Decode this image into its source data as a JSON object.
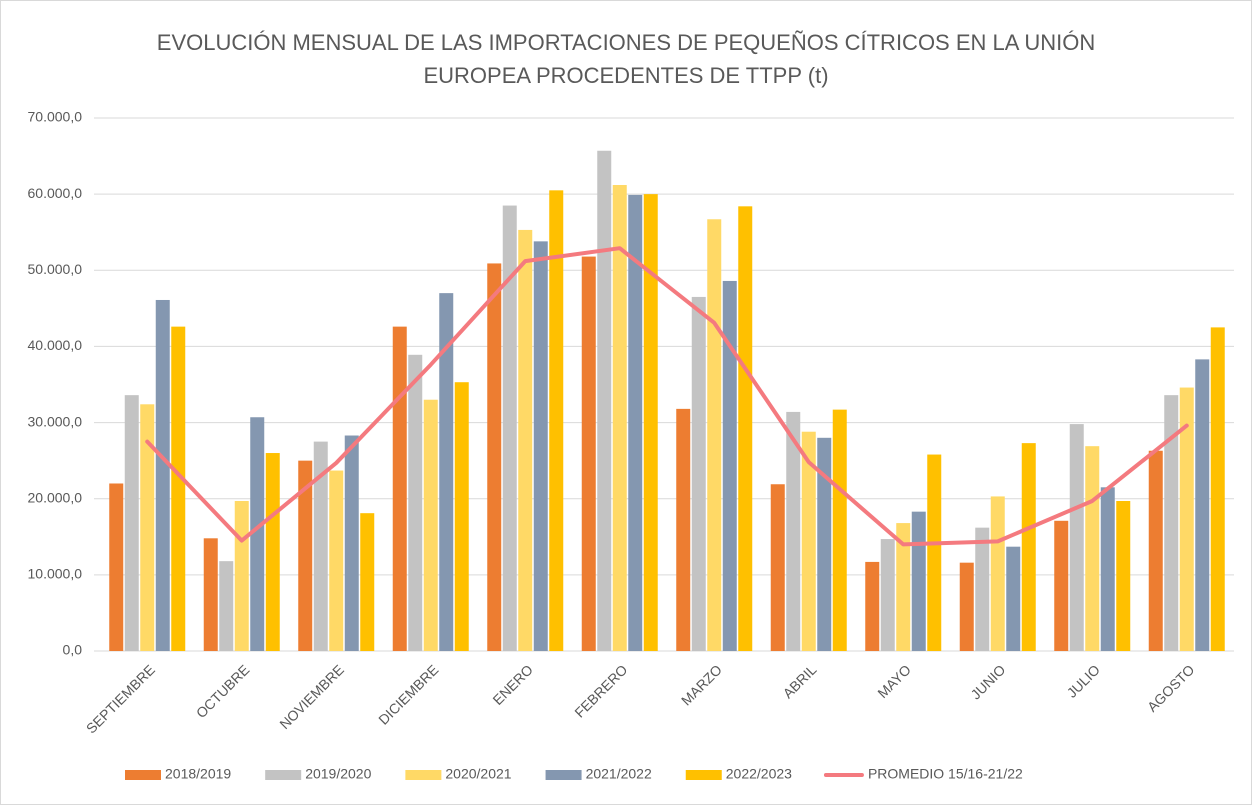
{
  "chart_data": {
    "type": "bar",
    "title": "EVOLUCIÓN MENSUAL DE LAS IMPORTACIONES DE PEQUEÑOS CÍTRICOS EN LA UNIÓN EUROPEA PROCEDENTES DE TTPP (t)",
    "categories": [
      "SEPTIEMBRE",
      "OCTUBRE",
      "NOVIEMBRE",
      "DICIEMBRE",
      "ENERO",
      "FEBRERO",
      "MARZO",
      "ABRIL",
      "MAYO",
      "JUNIO",
      "JULIO",
      "AGOSTO"
    ],
    "series": [
      {
        "name": "2018/2019",
        "color": "#ED7D31",
        "type": "bar",
        "values": [
          22000,
          14800,
          25000,
          42600,
          50900,
          51800,
          31800,
          21900,
          11700,
          11600,
          17100,
          26300
        ]
      },
      {
        "name": "2019/2020",
        "color": "#C3C3C3",
        "type": "bar",
        "values": [
          33600,
          11800,
          27500,
          38900,
          58500,
          65700,
          46500,
          31400,
          14700,
          16200,
          29800,
          33600
        ]
      },
      {
        "name": "2020/2021",
        "color": "#FFD966",
        "type": "bar",
        "values": [
          32400,
          19700,
          23700,
          33000,
          55300,
          61200,
          56700,
          28800,
          16800,
          20300,
          26900,
          34600
        ]
      },
      {
        "name": "2021/2022",
        "color": "#8497B0",
        "type": "bar",
        "values": [
          46100,
          30700,
          28300,
          47000,
          53800,
          59900,
          48600,
          28000,
          18300,
          13700,
          21500,
          38300
        ]
      },
      {
        "name": "2022/2023",
        "color": "#FFC000",
        "type": "bar",
        "values": [
          42600,
          26000,
          18100,
          35300,
          60500,
          60000,
          58400,
          31700,
          25800,
          27300,
          19700,
          42500
        ]
      },
      {
        "name": "PROMEDIO 15/16-21/22",
        "color": "#F47A7F",
        "type": "line",
        "values": [
          27500,
          14500,
          24700,
          37600,
          51200,
          52900,
          43100,
          24800,
          14000,
          14400,
          19700,
          29600
        ]
      }
    ],
    "ylim": [
      0,
      70000
    ],
    "yticks": [
      {
        "value": 0,
        "label": "0,0"
      },
      {
        "value": 10000,
        "label": "10.000,0"
      },
      {
        "value": 20000,
        "label": "20.000,0"
      },
      {
        "value": 30000,
        "label": "30.000,0"
      },
      {
        "value": 40000,
        "label": "40.000,0"
      },
      {
        "value": 50000,
        "label": "50.000,0"
      },
      {
        "value": 60000,
        "label": "60.000,0"
      },
      {
        "value": 70000,
        "label": "70.000,0"
      }
    ],
    "grid": true,
    "legend": "bottom"
  }
}
